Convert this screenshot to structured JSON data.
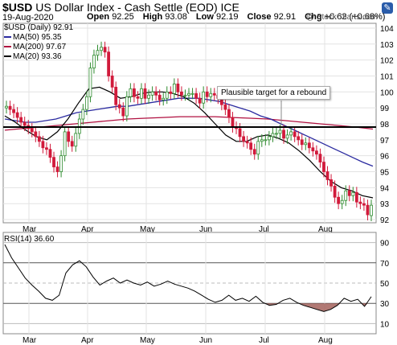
{
  "header": {
    "symbol": "$USD",
    "name": "US Dollar Index - Cash Settle (EOD)",
    "exchange": "ICE",
    "date": "19-Aug-2020",
    "open_label": "Open",
    "open": "92.25",
    "high_label": "High",
    "high": "93.08",
    "low_label": "Low",
    "low": "92.19",
    "close_label": "Close",
    "close": "92.91",
    "chg_label": "Chg",
    "chg": "+0.62 (+0.68%)",
    "credit": "@ StockCharts.com",
    "icon": "settings-icon"
  },
  "legend": {
    "price": "$USD (Daily) 92.91",
    "ma50": "MA(50) 95.35",
    "ma200": "MA(200) 97.67",
    "ma20": "MA(20) 93.36"
  },
  "annotation": "Plausible target for a rebound",
  "rsi_label": "RSI(14) 36.60",
  "colors": {
    "up": "#2e8b2e",
    "down": "#d11a3b",
    "ma50": "#2b2ba0",
    "ma200": "#b01040",
    "ma20": "#000000",
    "rsi": "#000000",
    "rsi_fill": "#a3625c"
  },
  "chart_data": [
    {
      "type": "line",
      "title": "$USD (Daily) 92.91",
      "x_ticks": [
        "Mar",
        "Apr",
        "May",
        "Jun",
        "Jul",
        "Aug"
      ],
      "ylim": [
        91.8,
        104.3
      ],
      "y_ticks": [
        92,
        93,
        94,
        95,
        96,
        97,
        98,
        99,
        100,
        101,
        102,
        103,
        104
      ],
      "horizontal_line": 97.8,
      "series": [
        {
          "name": "$USD (Daily) 92.91",
          "style": "candles",
          "close": [
            99.1,
            98.9,
            98.7,
            98.4,
            98.1,
            97.9,
            97.7,
            97.5,
            97.2,
            96.9,
            96.5,
            96.4,
            95.9,
            95.3,
            95.0,
            96.0,
            97.5,
            96.9,
            96.6,
            97.4,
            98.3,
            98.9,
            99.7,
            101.5,
            102.3,
            102.6,
            102.8,
            102.5,
            101.0,
            100.3,
            99.2,
            99.0,
            98.5,
            99.7,
            100.2,
            99.7,
            99.6,
            100.2,
            99.6,
            99.8,
            100.0,
            99.8,
            99.5,
            99.6,
            100.0,
            99.9,
            100.5,
            100.0,
            99.8,
            99.8,
            99.9,
            99.9,
            99.6,
            99.3,
            100.0,
            99.7,
            99.9,
            99.8,
            99.6,
            99.2,
            98.9,
            98.4,
            97.8,
            97.7,
            97.2,
            96.9,
            96.8,
            96.4,
            96.1,
            96.9,
            97.0,
            97.0,
            97.2,
            97.4,
            97.4,
            97.6,
            97.1,
            97.3,
            97.5,
            97.2,
            97.0,
            96.7,
            96.8,
            96.5,
            96.3,
            96.1,
            95.6,
            95.0,
            94.5,
            94.1,
            93.4,
            93.0,
            93.2,
            93.8,
            93.5,
            93.7,
            93.1,
            93.0,
            92.9,
            92.3,
            92.9
          ],
          "open": [
            99.0,
            99.1,
            98.9,
            98.7,
            98.4,
            98.1,
            97.9,
            97.7,
            97.5,
            97.2,
            96.9,
            96.5,
            96.4,
            95.9,
            95.3,
            95.0,
            96.0,
            97.5,
            96.9,
            96.6,
            97.4,
            98.3,
            98.9,
            99.7,
            101.5,
            102.3,
            102.6,
            102.8,
            102.5,
            101.0,
            100.3,
            99.2,
            99.0,
            98.5,
            99.7,
            100.2,
            99.7,
            99.6,
            100.2,
            99.6,
            99.8,
            100.0,
            99.8,
            99.5,
            99.6,
            100.0,
            99.9,
            100.5,
            100.0,
            99.8,
            99.8,
            99.9,
            99.9,
            99.6,
            99.3,
            100.0,
            99.7,
            99.9,
            99.8,
            99.6,
            99.2,
            98.9,
            98.4,
            97.8,
            97.7,
            97.2,
            96.9,
            96.8,
            96.4,
            96.1,
            96.9,
            97.0,
            97.0,
            97.2,
            97.4,
            97.4,
            97.6,
            97.1,
            97.3,
            97.5,
            97.2,
            97.0,
            96.7,
            96.8,
            96.5,
            96.3,
            96.1,
            95.6,
            95.0,
            94.5,
            94.1,
            93.4,
            93.0,
            93.2,
            93.8,
            93.5,
            93.7,
            93.1,
            93.0,
            92.9,
            92.25
          ]
        },
        {
          "name": "MA(50) 95.35",
          "values": [
            98.3,
            98.2,
            98.1,
            98.1,
            98.2,
            98.3,
            98.5,
            98.7,
            98.8,
            98.9,
            99.0,
            99.1,
            99.1,
            99.2,
            99.3,
            99.4,
            99.5,
            99.6,
            99.6,
            99.6,
            99.5,
            99.4,
            99.2,
            99.0,
            98.8,
            98.5,
            98.3,
            98.0,
            97.7,
            97.4,
            97.1,
            96.8,
            96.5,
            96.2,
            95.9,
            95.6,
            95.35
          ]
        },
        {
          "name": "MA(200) 97.67",
          "values": [
            97.6,
            97.7,
            97.8,
            97.9,
            98.0,
            98.1,
            98.2,
            98.3,
            98.35,
            98.4,
            98.45,
            98.45,
            98.45,
            98.4,
            98.35,
            98.3,
            98.2,
            98.1,
            98.0,
            97.9,
            97.8,
            97.67
          ]
        },
        {
          "name": "MA(20) 93.36",
          "values": [
            98.5,
            98.1,
            97.6,
            97.2,
            97.0,
            97.5,
            98.3,
            99.3,
            100.2,
            100.3,
            100.0,
            99.6,
            99.7,
            99.9,
            100.0,
            100.0,
            99.9,
            99.7,
            99.3,
            98.7,
            98.0,
            97.3,
            96.9,
            96.9,
            97.2,
            97.3,
            97.1,
            96.8,
            96.3,
            95.7,
            95.0,
            94.4,
            94.0,
            93.8,
            93.5,
            93.36
          ]
        }
      ]
    },
    {
      "type": "line",
      "title": "RSI(14) 36.60",
      "x_ticks": [
        "Mar",
        "Apr",
        "May",
        "Jun",
        "Jul",
        "Aug"
      ],
      "ylim": [
        0,
        100
      ],
      "y_ticks": [
        10,
        30,
        50,
        70,
        90
      ],
      "series": [
        {
          "name": "RSI(14) 36.60",
          "values": [
            88,
            75,
            65,
            55,
            48,
            42,
            35,
            33,
            38,
            60,
            68,
            72,
            66,
            56,
            48,
            52,
            55,
            50,
            53,
            50,
            48,
            51,
            47,
            49,
            52,
            49,
            47,
            45,
            42,
            38,
            34,
            31,
            33,
            38,
            33,
            35,
            32,
            37,
            31,
            28,
            29,
            33,
            35,
            31,
            28,
            26,
            24,
            22,
            24,
            28,
            35,
            32,
            34,
            27,
            36.6
          ]
        }
      ]
    }
  ]
}
